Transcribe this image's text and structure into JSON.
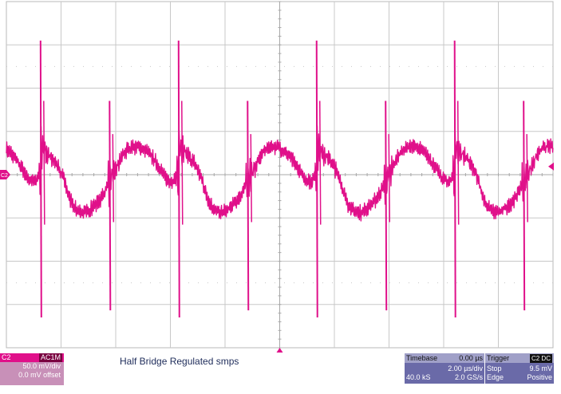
{
  "chart_data": {
    "type": "line",
    "title": "Half Bridge Regulated smps",
    "xlabel": "",
    "ylabel": "",
    "x_divisions": 10,
    "y_divisions": 8,
    "grid": true,
    "x_unit": "µs",
    "y_unit": "mV",
    "xlim": [
      0,
      20
    ],
    "ylim": [
      -200,
      200
    ],
    "series": [
      {
        "color": "#e0108a",
        "period_us": 5.05,
        "phase_us": 1.25,
        "spike_max_mv": 155,
        "spike_min_mv": -165,
        "waveform_points": [
          [
            0.0,
            35
          ],
          [
            0.1,
            28
          ],
          [
            0.35,
            22
          ],
          [
            0.6,
            12
          ],
          [
            0.85,
            -5
          ],
          [
            1.0,
            -22
          ],
          [
            1.15,
            -34
          ],
          [
            1.35,
            -42
          ],
          [
            1.6,
            -44
          ],
          [
            1.9,
            -38
          ],
          [
            2.2,
            -28
          ],
          [
            2.5,
            -10
          ],
          [
            2.65,
            0
          ],
          [
            2.8,
            8
          ],
          [
            3.0,
            22
          ],
          [
            3.2,
            30
          ],
          [
            3.4,
            33
          ],
          [
            3.6,
            32
          ],
          [
            3.85,
            28
          ],
          [
            4.1,
            20
          ],
          [
            4.35,
            8
          ],
          [
            4.6,
            -5
          ],
          [
            4.85,
            -8
          ],
          [
            5.05,
            0
          ]
        ]
      }
    ],
    "channel": {
      "name": "C2",
      "coupling": "AC1M",
      "scale": "50.0 mV/div",
      "offset": "0.0 mV offset"
    },
    "timebase": {
      "label": "Timebase",
      "position": "0.00 µs",
      "scale": "2.00 µs/div",
      "samples": "40.0 kS",
      "rate": "2.0 GS/s"
    },
    "trigger": {
      "label": "Trigger",
      "source": "C2 DC",
      "mode": "Stop",
      "level": "9.5 mV",
      "type": "Edge",
      "slope": "Positive"
    }
  },
  "markers": {
    "channel_tag": "C2"
  }
}
